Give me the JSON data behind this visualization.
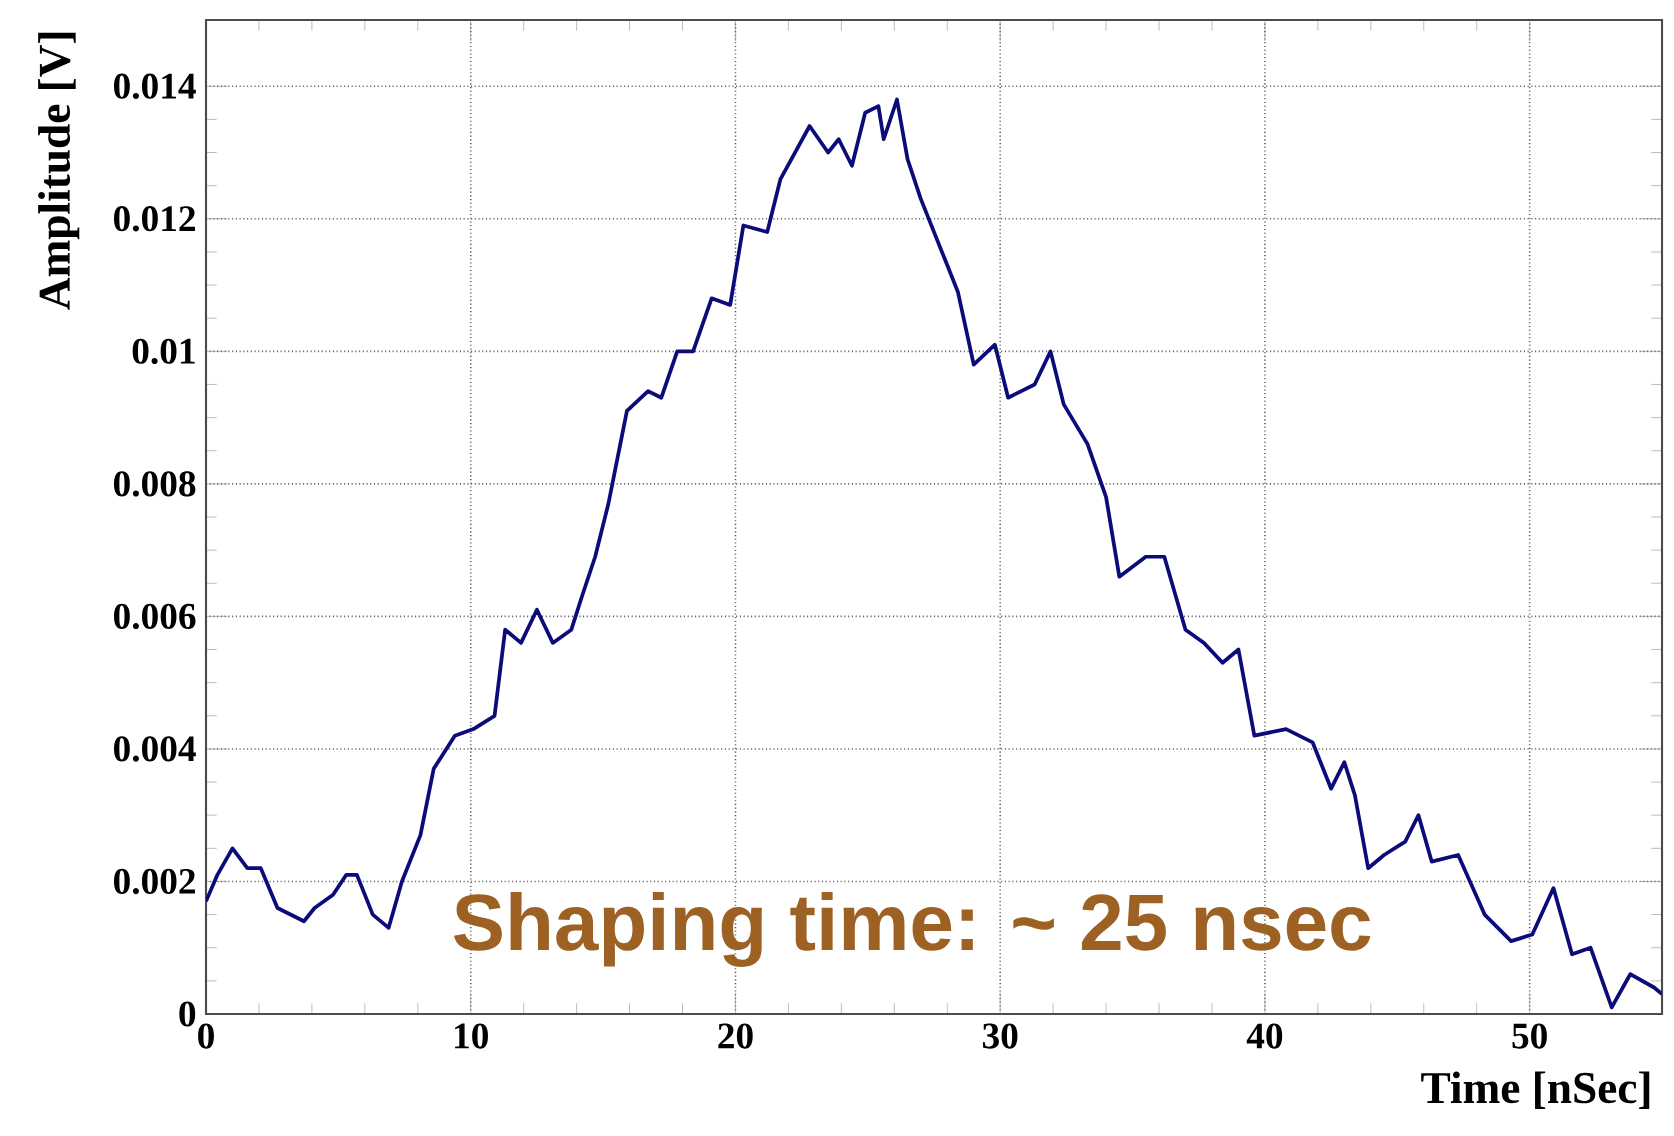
{
  "chart_data": {
    "type": "line",
    "xlabel": "Time [nSec]",
    "ylabel": "Amplitude [V]",
    "xlim": [
      0,
      55
    ],
    "ylim": [
      0,
      0.015
    ],
    "xticks": [
      0,
      10,
      20,
      30,
      40,
      50
    ],
    "yticks": [
      0,
      0.002,
      0.004,
      0.006,
      0.008,
      0.01,
      0.012,
      0.014
    ],
    "grid": true,
    "annotations": [
      "Shaping time: ~ 25 nsec"
    ],
    "series": [
      {
        "color": "#0b0b7a",
        "x": [
          0,
          0.43,
          1.0,
          1.56,
          2.07,
          2.7,
          3.7,
          4.1,
          4.8,
          5.3,
          5.7,
          6.3,
          6.9,
          7.4,
          8.1,
          8.6,
          9.4,
          10.1,
          10.9,
          11.3,
          11.9,
          12.5,
          13.1,
          13.8,
          14.2,
          14.7,
          15.2,
          15.5,
          15.9,
          16.7,
          17.2,
          17.8,
          18.4,
          19.1,
          19.8,
          20.3,
          21.2,
          21.7,
          22.8,
          23.5,
          23.9,
          24.4,
          24.9,
          25.4,
          25.6,
          26.1,
          26.5,
          27.0,
          27.9,
          28.4,
          29.0,
          29.8,
          30.3,
          31.3,
          31.9,
          32.4,
          33.3,
          34.0,
          34.5,
          35.5,
          36.2,
          37.0,
          37.7,
          38.4,
          39.0,
          39.6,
          40.8,
          41.8,
          42.5,
          43.0,
          43.4,
          43.9,
          44.5,
          45.3,
          45.8,
          46.3,
          47.3,
          48.3,
          49.3,
          50.1,
          50.9,
          51.6,
          52.3,
          53.1,
          53.8,
          54.7,
          55.0
        ],
        "values": [
          0.0017,
          0.0021,
          0.0025,
          0.0022,
          0.0022,
          0.0016,
          0.0014,
          0.0016,
          0.0018,
          0.0021,
          0.0021,
          0.0015,
          0.0013,
          0.002,
          0.0027,
          0.0037,
          0.0042,
          0.0043,
          0.0045,
          0.0058,
          0.0056,
          0.0061,
          0.0056,
          0.0058,
          0.0063,
          0.0069,
          0.0077,
          0.0083,
          0.0091,
          0.0094,
          0.0093,
          0.01,
          0.01,
          0.0108,
          0.0107,
          0.0119,
          0.0118,
          0.0126,
          0.0134,
          0.013,
          0.0132,
          0.0128,
          0.0136,
          0.0137,
          0.0132,
          0.0138,
          0.0129,
          0.0123,
          0.0114,
          0.0109,
          0.0098,
          0.0101,
          0.0093,
          0.0095,
          0.01,
          0.0092,
          0.0086,
          0.0078,
          0.0066,
          0.0069,
          0.0069,
          0.0058,
          0.0056,
          0.0053,
          0.0055,
          0.0042,
          0.0043,
          0.0041,
          0.0034,
          0.0038,
          0.0033,
          0.0022,
          0.0024,
          0.0026,
          0.003,
          0.0023,
          0.0024,
          0.0015,
          0.0011,
          0.0012,
          0.0019,
          0.0009,
          0.001,
          0.0001,
          0.0006,
          0.0004,
          0.0003
        ]
      }
    ]
  }
}
